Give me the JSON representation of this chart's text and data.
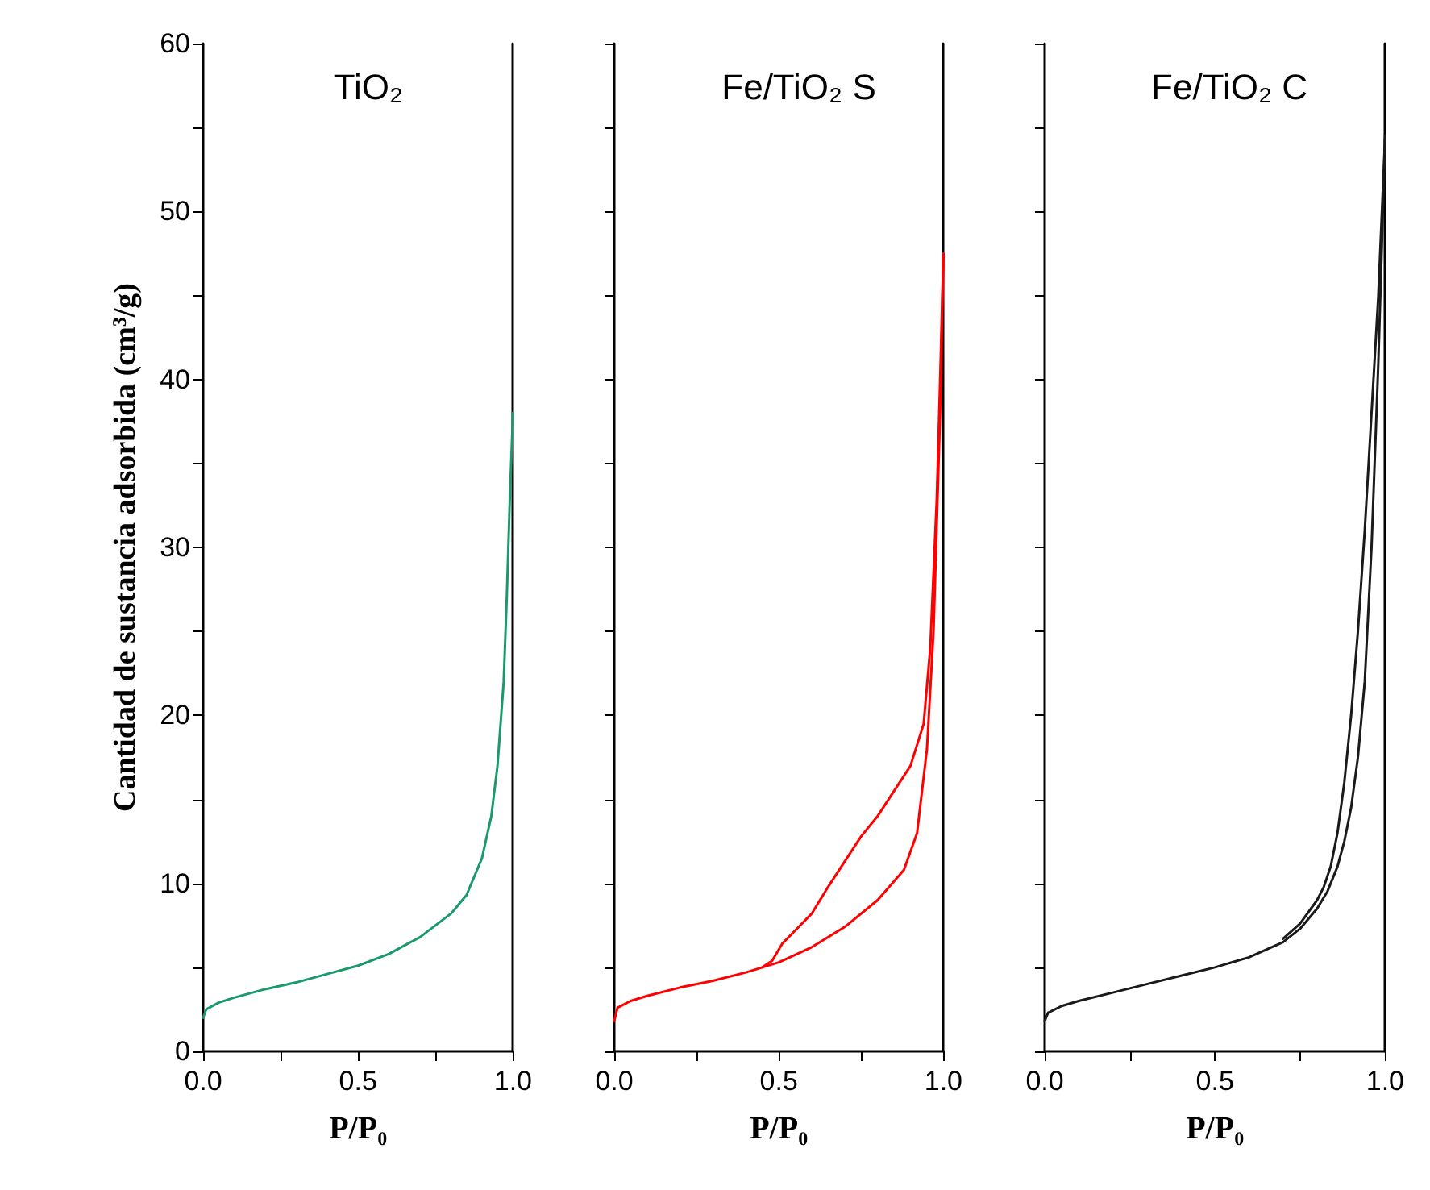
{
  "chart_data": [
    {
      "type": "line",
      "title": "TiO₂",
      "xlabel": "P/P₀",
      "ylabel": "Cantidad de sustancia adsorbida (cm$^{3}$/g)",
      "xlim": [
        0,
        1
      ],
      "xticks": [
        {
          "value": 0,
          "label": "0.0"
        },
        {
          "value": 0.25,
          "label": null
        },
        {
          "value": 0.5,
          "label": "0.5"
        },
        {
          "value": 0.75,
          "label": null
        },
        {
          "value": 1,
          "label": "1.0"
        }
      ],
      "ylim": [
        0,
        60
      ],
      "yticks": [
        0,
        {
          "value": 5,
          "label": null
        },
        10,
        {
          "value": 15,
          "label": null
        },
        20,
        {
          "value": 25,
          "label": null
        },
        30,
        {
          "value": 35,
          "label": null
        },
        40,
        {
          "value": 45,
          "label": null
        },
        50,
        {
          "value": 55,
          "label": null
        },
        60
      ],
      "grid": false,
      "marker": "none",
      "line_style": "solid",
      "series": [
        {
          "color": "#1a9a6a",
          "x": [
            0,
            0.01,
            0.05,
            0.1,
            0.2,
            0.3,
            0.4,
            0.5,
            0.6,
            0.7,
            0.8,
            0.85,
            0.9,
            0.93,
            0.95,
            0.97,
            0.98,
            0.99,
            1.0
          ],
          "values": [
            2.0,
            2.5,
            2.9,
            3.2,
            3.7,
            4.1,
            4.6,
            5.1,
            5.8,
            6.8,
            8.2,
            9.3,
            11.5,
            14,
            17,
            22,
            27,
            33,
            38
          ]
        }
      ]
    },
    {
      "type": "line",
      "title": "Fe/TiO₂ S",
      "xlabel": "P/P₀",
      "xlim": [
        0,
        1
      ],
      "xticks": [
        {
          "value": 0,
          "label": "0.0"
        },
        {
          "value": 0.25,
          "label": null
        },
        {
          "value": 0.5,
          "label": "0.5"
        },
        {
          "value": 0.75,
          "label": null
        },
        {
          "value": 1,
          "label": "1.0"
        }
      ],
      "ylim": [
        0,
        60
      ],
      "yticks": [
        0,
        {
          "value": 5,
          "label": null
        },
        10,
        {
          "value": 15,
          "label": null
        },
        20,
        {
          "value": 25,
          "label": null
        },
        30,
        {
          "value": 35,
          "label": null
        },
        40,
        {
          "value": 45,
          "label": null
        },
        50,
        {
          "value": 55,
          "label": null
        },
        60
      ],
      "tick_labels": "x",
      "grid": false,
      "marker": "none",
      "line_style": "solid",
      "series": [
        {
          "color": "#ff0000",
          "x": [
            0,
            0.01,
            0.05,
            0.1,
            0.2,
            0.3,
            0.4,
            0.5,
            0.6,
            0.7,
            0.8,
            0.88,
            0.92,
            0.95,
            0.97,
            0.99,
            1.0
          ],
          "values": [
            1.8,
            2.6,
            3.0,
            3.3,
            3.8,
            4.2,
            4.7,
            5.3,
            6.2,
            7.4,
            9.0,
            10.8,
            13,
            18,
            25,
            38,
            47.5
          ]
        },
        {
          "color": "#ff0000",
          "x": [
            1.0,
            0.99,
            0.98,
            0.96,
            0.94,
            0.9,
            0.85,
            0.8,
            0.75,
            0.7,
            0.65,
            0.6,
            0.55,
            0.51,
            0.48,
            0.45
          ],
          "values": [
            47.5,
            40,
            33,
            24,
            19.5,
            17,
            15.5,
            14,
            12.8,
            11.3,
            9.8,
            8.2,
            7.2,
            6.4,
            5.4,
            5.0
          ]
        }
      ]
    },
    {
      "type": "line",
      "title": "Fe/TiO₂ C",
      "xlabel": "P/P₀",
      "xlim": [
        0,
        1
      ],
      "xticks": [
        {
          "value": 0,
          "label": "0.0"
        },
        {
          "value": 0.25,
          "label": null
        },
        {
          "value": 0.5,
          "label": "0.5"
        },
        {
          "value": 0.75,
          "label": null
        },
        {
          "value": 1,
          "label": "1.0"
        }
      ],
      "ylim": [
        0,
        60
      ],
      "yticks": [
        0,
        {
          "value": 5,
          "label": null
        },
        10,
        {
          "value": 15,
          "label": null
        },
        20,
        {
          "value": 25,
          "label": null
        },
        30,
        {
          "value": 35,
          "label": null
        },
        40,
        {
          "value": 45,
          "label": null
        },
        50,
        {
          "value": 55,
          "label": null
        },
        60
      ],
      "tick_labels": "x",
      "grid": false,
      "marker": "none",
      "line_style": "solid",
      "series": [
        {
          "color": "#1a1a1a",
          "x": [
            0,
            0.01,
            0.05,
            0.1,
            0.2,
            0.3,
            0.4,
            0.5,
            0.6,
            0.7,
            0.75,
            0.8,
            0.83,
            0.86,
            0.88,
            0.9,
            0.92,
            0.94,
            0.96,
            0.98,
            1.0
          ],
          "values": [
            1.8,
            2.3,
            2.7,
            3.0,
            3.5,
            4.0,
            4.5,
            5.0,
            5.6,
            6.5,
            7.3,
            8.5,
            9.5,
            11,
            12.5,
            14.5,
            17.5,
            22,
            30,
            41,
            54.5
          ]
        },
        {
          "color": "#1a1a1a",
          "x": [
            1.0,
            0.98,
            0.94,
            0.92,
            0.9,
            0.88,
            0.86,
            0.84,
            0.82,
            0.8,
            0.75,
            0.7
          ],
          "values": [
            54.5,
            45,
            31,
            25,
            20,
            16,
            13,
            11,
            9.8,
            9.0,
            7.6,
            6.7
          ]
        }
      ]
    }
  ]
}
